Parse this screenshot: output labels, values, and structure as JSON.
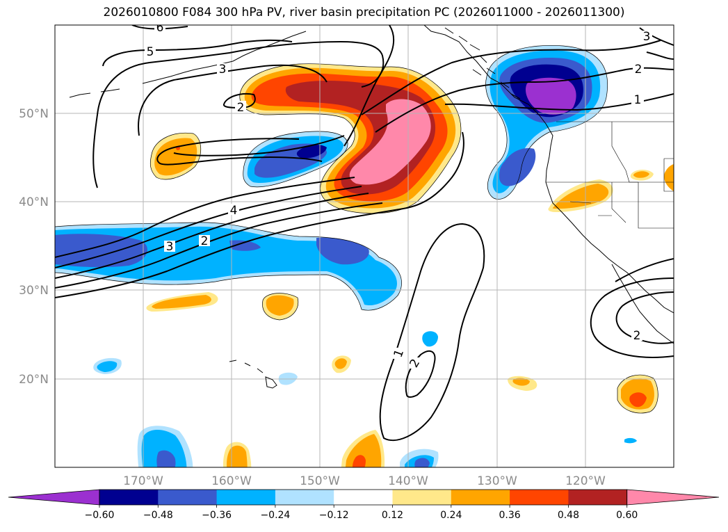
{
  "title": "2026010800 F084 300 hPa PV, river basin precipitation PC (2026011000 - 2026011300)",
  "map": {
    "lat_labels": [
      "50°N",
      "40°N",
      "30°N",
      "20°N"
    ],
    "lon_labels": [
      "170°W",
      "160°W",
      "150°W",
      "140°W",
      "130°W",
      "120°W"
    ],
    "contour_labels": [
      "6",
      "5",
      "3",
      "3",
      "2",
      "1",
      "4",
      "3",
      "2",
      "2",
      "2",
      "1",
      "2"
    ]
  },
  "colorbar": {
    "ticks": [
      "−0.60",
      "−0.48",
      "−0.36",
      "−0.24",
      "−0.12",
      "0.12",
      "0.24",
      "0.36",
      "0.48",
      "0.60"
    ],
    "colors": [
      "#9b30d0",
      "#000090",
      "#3a5acd",
      "#00b2ff",
      "#b0e2ff",
      "#ffffff",
      "#ffe88a",
      "#ffa500",
      "#ff4500",
      "#b22222",
      "#ff88aa"
    ]
  },
  "colors": {
    "neg_strong": "#9b30d0",
    "neg_4": "#000090",
    "neg_3": "#3a5acd",
    "neg_2": "#00b2ff",
    "neg_1": "#b0e2ff",
    "pos_1": "#ffe88a",
    "pos_2": "#ffa500",
    "pos_3": "#ff4500",
    "pos_4": "#b22222",
    "pos_strong": "#ff88aa"
  }
}
